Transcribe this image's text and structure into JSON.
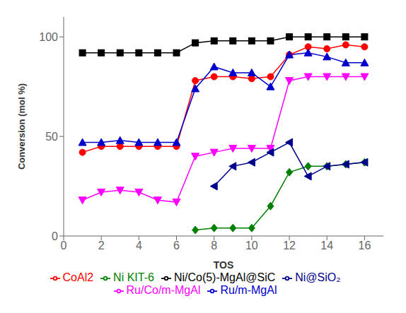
{
  "chart_data": {
    "type": "line",
    "xlabel": "TOS",
    "ylabel": "Conversion (mol %)",
    "xlim": [
      0,
      17
    ],
    "ylim": [
      0,
      110
    ],
    "xticks": [
      0,
      2,
      4,
      6,
      8,
      10,
      12,
      14,
      16
    ],
    "yticks": [
      0,
      50,
      100
    ],
    "grid": false,
    "legend": "bottom",
    "series": [
      {
        "name": "Ni/Co(5)-MgAl@SiC",
        "color": "black",
        "marker": "square",
        "x": [
          1,
          2,
          3,
          4,
          5,
          6,
          7,
          8,
          9,
          10,
          11,
          12,
          13,
          14,
          15,
          16
        ],
        "values": [
          92,
          92,
          92,
          92,
          92,
          92,
          97,
          98,
          98,
          98,
          98,
          100,
          100,
          100,
          100,
          100
        ]
      },
      {
        "name": "CoAl2",
        "color": "#ff0000",
        "marker": "circle",
        "x": [
          1,
          2,
          3,
          4,
          5,
          6,
          7,
          8,
          9,
          10,
          11,
          12,
          13,
          14,
          15,
          16
        ],
        "values": [
          42,
          45,
          45,
          45,
          45,
          45,
          78,
          80,
          80,
          79,
          80,
          91,
          95,
          94,
          96,
          95
        ]
      },
      {
        "name": "Ru/m-MgAl",
        "color": "#0000cc",
        "marker": "triangle-up",
        "x": [
          1,
          2,
          3,
          4,
          5,
          6,
          7,
          8,
          9,
          10,
          11,
          12,
          13,
          14,
          15,
          16
        ],
        "values": [
          47,
          47,
          48,
          47,
          47,
          47,
          74,
          85,
          82,
          82,
          75,
          91,
          92,
          90,
          87,
          87
        ]
      },
      {
        "name": "Ru/Co/m-MgAl",
        "color": "#ff00ff",
        "marker": "triangle-down",
        "x": [
          1,
          2,
          3,
          4,
          5,
          6,
          7,
          8,
          9,
          10,
          11,
          12,
          13,
          14,
          15,
          16
        ],
        "values": [
          18,
          22,
          23,
          22,
          18,
          17,
          40,
          42,
          44,
          44,
          44,
          78,
          80,
          80,
          80,
          80
        ]
      },
      {
        "name": "Ni KIT-6",
        "color": "#008000",
        "marker": "diamond",
        "x": [
          7,
          8,
          9,
          10,
          11,
          12,
          13,
          14,
          15,
          16
        ],
        "values": [
          3,
          4,
          4,
          4,
          15,
          32,
          35,
          35,
          36,
          37
        ]
      },
      {
        "name": "Ni@SiO₂",
        "color": "#00008b",
        "marker": "triangle-left",
        "x": [
          8,
          9,
          10,
          11,
          12,
          13,
          14,
          15,
          16
        ],
        "values": [
          25,
          35,
          37,
          42,
          47,
          30,
          35,
          36,
          37
        ]
      }
    ]
  }
}
